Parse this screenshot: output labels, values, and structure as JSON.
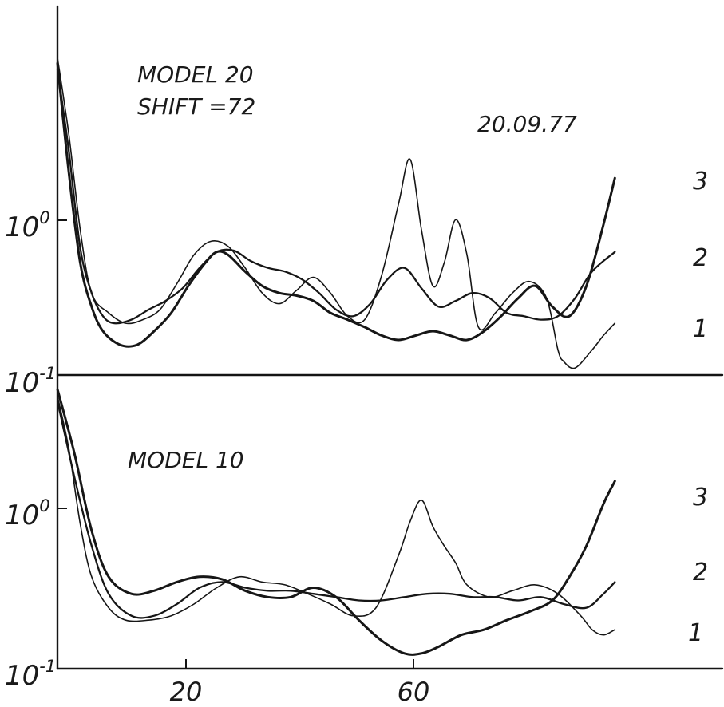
{
  "chart_data": [
    {
      "type": "line",
      "panel": "top",
      "annotations": [
        "MODEL 20",
        "SHIFT =72",
        "20.09.77"
      ],
      "ytick_labels": [
        "10",
        "10"
      ],
      "ytick_exponents": [
        "0",
        "-1"
      ],
      "yscale": "log",
      "xlim": [
        0,
        112
      ],
      "ylim": [
        0.1,
        8
      ],
      "series": [
        {
          "name": "1",
          "x": [
            0,
            2,
            4,
            6,
            9,
            12,
            15,
            18,
            21,
            24,
            27,
            30,
            33,
            36,
            39,
            42,
            45,
            48,
            51,
            54,
            57,
            60,
            62,
            64,
            66,
            68,
            70,
            72,
            74,
            77,
            80,
            83,
            86,
            88,
            89,
            91,
            94,
            96,
            98
          ],
          "y": [
            7.0,
            2.5,
            0.7,
            0.3,
            0.23,
            0.2,
            0.21,
            0.24,
            0.34,
            0.5,
            0.6,
            0.56,
            0.42,
            0.3,
            0.26,
            0.31,
            0.37,
            0.3,
            0.22,
            0.21,
            0.38,
            1.0,
            1.8,
            0.7,
            0.33,
            0.45,
            0.8,
            0.5,
            0.19,
            0.23,
            0.3,
            0.35,
            0.28,
            0.14,
            0.12,
            0.11,
            0.14,
            0.17,
            0.2
          ]
        },
        {
          "name": "2",
          "x": [
            0,
            2,
            4,
            6,
            8,
            10,
            13,
            16,
            19,
            22,
            25,
            28,
            31,
            34,
            37,
            40,
            43,
            46,
            49,
            52,
            55,
            58,
            61,
            64,
            67,
            70,
            73,
            76,
            79,
            82,
            85,
            88,
            91,
            94,
            98
          ],
          "y": [
            6.0,
            2.0,
            0.55,
            0.3,
            0.22,
            0.2,
            0.21,
            0.24,
            0.27,
            0.32,
            0.42,
            0.52,
            0.53,
            0.46,
            0.42,
            0.4,
            0.36,
            0.3,
            0.24,
            0.22,
            0.26,
            0.36,
            0.42,
            0.32,
            0.25,
            0.27,
            0.3,
            0.28,
            0.23,
            0.22,
            0.21,
            0.22,
            0.28,
            0.4,
            0.52
          ]
        },
        {
          "name": "3",
          "x": [
            0,
            2,
            4,
            6,
            8,
            11,
            14,
            17,
            20,
            23,
            26,
            28,
            30,
            33,
            36,
            39,
            42,
            45,
            48,
            51,
            54,
            57,
            60,
            63,
            66,
            69,
            72,
            75,
            78,
            81,
            84,
            87,
            90,
            93,
            96,
            98
          ],
          "y": [
            6.5,
            1.5,
            0.45,
            0.25,
            0.18,
            0.15,
            0.15,
            0.18,
            0.23,
            0.33,
            0.45,
            0.52,
            0.5,
            0.4,
            0.33,
            0.3,
            0.29,
            0.27,
            0.23,
            0.21,
            0.19,
            0.17,
            0.16,
            0.17,
            0.18,
            0.17,
            0.16,
            0.18,
            0.22,
            0.28,
            0.33,
            0.25,
            0.22,
            0.33,
            0.75,
            1.4
          ]
        }
      ]
    },
    {
      "type": "line",
      "panel": "bottom",
      "annotations": [
        "MODEL 10"
      ],
      "ytick_labels": [
        "10",
        "10"
      ],
      "ytick_exponents": [
        "0",
        "-1"
      ],
      "xtick_labels": [
        "20",
        "60"
      ],
      "xticks": [
        20,
        60
      ],
      "yscale": "log",
      "xlim": [
        0,
        112
      ],
      "ylim": [
        0.09,
        3.8
      ],
      "series": [
        {
          "name": "1",
          "x": [
            0,
            2,
            4,
            6,
            9,
            12,
            16,
            20,
            24,
            28,
            32,
            36,
            40,
            44,
            48,
            52,
            56,
            60,
            62,
            64,
            66,
            68,
            70,
            72,
            76,
            80,
            84,
            88,
            92,
            94,
            96,
            98
          ],
          "y": [
            3.2,
            1.6,
            0.6,
            0.3,
            0.2,
            0.17,
            0.17,
            0.18,
            0.21,
            0.26,
            0.3,
            0.28,
            0.27,
            0.24,
            0.21,
            0.18,
            0.2,
            0.4,
            0.62,
            0.82,
            0.58,
            0.45,
            0.36,
            0.27,
            0.23,
            0.25,
            0.27,
            0.24,
            0.18,
            0.15,
            0.14,
            0.15
          ]
        },
        {
          "name": "2",
          "x": [
            0,
            3,
            6,
            9,
            13,
            17,
            21,
            25,
            29,
            33,
            37,
            41,
            45,
            49,
            53,
            57,
            61,
            65,
            69,
            73,
            77,
            81,
            85,
            89,
            93,
            96,
            98
          ],
          "y": [
            3.0,
            1.1,
            0.45,
            0.24,
            0.18,
            0.18,
            0.21,
            0.26,
            0.28,
            0.26,
            0.25,
            0.25,
            0.24,
            0.23,
            0.22,
            0.22,
            0.23,
            0.24,
            0.24,
            0.23,
            0.23,
            0.22,
            0.23,
            0.21,
            0.2,
            0.24,
            0.28
          ]
        },
        {
          "name": "3",
          "x": [
            0,
            3,
            6,
            9,
            13,
            17,
            21,
            25,
            29,
            33,
            37,
            41,
            45,
            49,
            53,
            57,
            61,
            64,
            67,
            71,
            75,
            79,
            83,
            87,
            90,
            93,
            96,
            98
          ],
          "y": [
            3.5,
            1.5,
            0.55,
            0.3,
            0.24,
            0.25,
            0.28,
            0.3,
            0.29,
            0.25,
            0.23,
            0.23,
            0.26,
            0.23,
            0.17,
            0.13,
            0.11,
            0.11,
            0.12,
            0.14,
            0.15,
            0.17,
            0.19,
            0.22,
            0.3,
            0.45,
            0.78,
            1.05
          ]
        }
      ]
    }
  ]
}
